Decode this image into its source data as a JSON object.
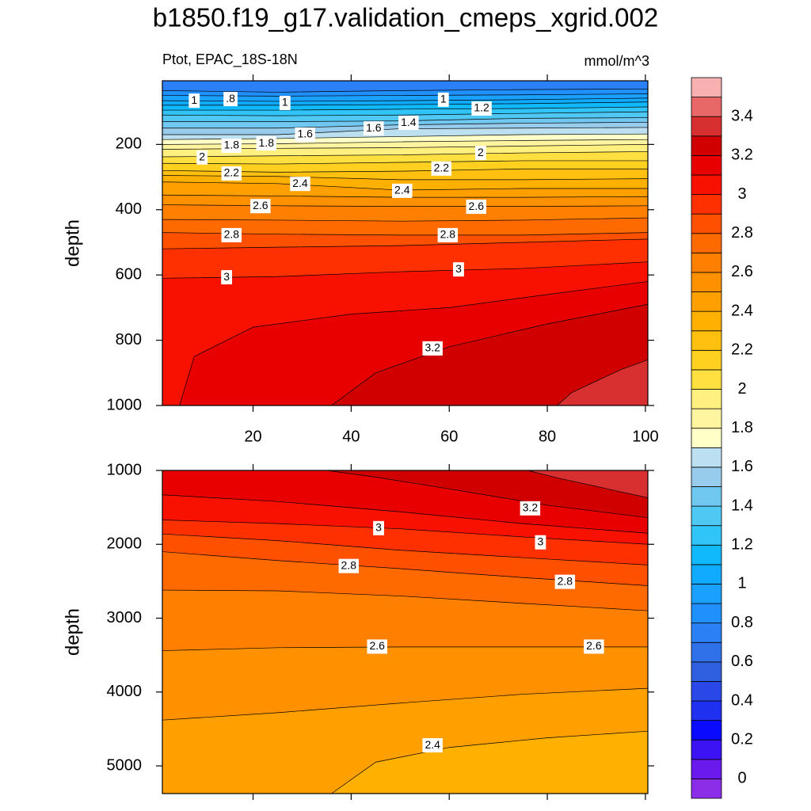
{
  "chart_data": {
    "type": "contour",
    "title": "b1850.f19_g17.validation_cmeps_xgrid.002",
    "subtitle_left": "Ptot, EPAC_18S-18N",
    "units": "mmol/m^3",
    "colorbar": {
      "levels": [
        0,
        0.1,
        0.2,
        0.3,
        0.4,
        0.5,
        0.6,
        0.7,
        0.8,
        0.9,
        1,
        1.1,
        1.2,
        1.3,
        1.4,
        1.5,
        1.6,
        1.7,
        1.8,
        1.9,
        2,
        2.1,
        2.2,
        2.3,
        2.4,
        2.5,
        2.6,
        2.7,
        2.8,
        2.9,
        3,
        3.1,
        3.2,
        3.3,
        3.4,
        3.5
      ],
      "colors": [
        "#8c2ee8",
        "#6a1aec",
        "#3c14f4",
        "#0a0aff",
        "#2030f0",
        "#2a48e8",
        "#3060e0",
        "#3070e8",
        "#2a80f4",
        "#2090fc",
        "#1aa0ff",
        "#10aaff",
        "#10b8fc",
        "#30c4f8",
        "#50c8f4",
        "#70c8f0",
        "#98ccec",
        "#bce0f0",
        "#ffffc8",
        "#fff4a0",
        "#fff080",
        "#ffe040",
        "#ffd020",
        "#ffc010",
        "#ffb000",
        "#ffa000",
        "#ff9000",
        "#ff8000",
        "#ff6a00",
        "#ff5000",
        "#ff3000",
        "#f81000",
        "#e80000",
        "#d00000",
        "#d83030",
        "#e86868",
        "#f8b0b0"
      ],
      "ticks": [
        0,
        0.2,
        0.4,
        0.6,
        0.8,
        1,
        1.2,
        1.4,
        1.6,
        1.8,
        2,
        2.2,
        2.4,
        2.6,
        2.8,
        3,
        3.2,
        3.4
      ]
    },
    "panels": [
      {
        "ylabel": "depth",
        "xlim": [
          1.5,
          100.5
        ],
        "ylim": [
          5,
          1000
        ],
        "y_reversed": true,
        "xticks": [
          20,
          40,
          60,
          80,
          100
        ],
        "show_xtick_labels": true,
        "yticks": [
          200,
          400,
          600,
          800,
          1000
        ],
        "contours": [
          {
            "level": 0.8,
            "x": [
              1.5,
              25,
              50,
              75,
              100.5
            ],
            "depth": [
              35,
              40,
              35,
              32,
              30
            ]
          },
          {
            "level": 0.9,
            "x": [
              1.5,
              25,
              50,
              75,
              100.5
            ],
            "depth": [
              50,
              52,
              50,
              48,
              45
            ]
          },
          {
            "level": 1,
            "x": [
              1.5,
              25,
              50,
              75,
              100.5
            ],
            "depth": [
              66,
              68,
              66,
              63,
              58
            ]
          },
          {
            "level": 1.1,
            "x": [
              1.5,
              25,
              50,
              75,
              100.5
            ],
            "depth": [
              80,
              80,
              78,
              75,
              70
            ]
          },
          {
            "level": 1.2,
            "x": [
              1.5,
              25,
              50,
              75,
              100.5
            ],
            "depth": [
              95,
              95,
              92,
              90,
              85
            ]
          },
          {
            "level": 1.3,
            "x": [
              1.5,
              25,
              50,
              75,
              100.5
            ],
            "depth": [
              110,
              112,
              110,
              105,
              100
            ]
          },
          {
            "level": 1.4,
            "x": [
              1.5,
              25,
              50,
              75,
              100.5
            ],
            "depth": [
              130,
              130,
              128,
              120,
              118
            ]
          },
          {
            "level": 1.5,
            "x": [
              1.5,
              25,
              50,
              75,
              100.5
            ],
            "depth": [
              150,
              150,
              140,
              135,
              132
            ]
          },
          {
            "level": 1.6,
            "x": [
              1.5,
              25,
              50,
              75,
              100.5
            ],
            "depth": [
              170,
              170,
              152,
              150,
              148
            ]
          },
          {
            "level": 1.7,
            "x": [
              1.5,
              25,
              50,
              75,
              100.5
            ],
            "depth": [
              185,
              182,
              176,
              170,
              168
            ]
          },
          {
            "level": 1.8,
            "x": [
              1.5,
              25,
              50,
              75,
              100.5
            ],
            "depth": [
              200,
              198,
              192,
              188,
              185
            ]
          },
          {
            "level": 1.9,
            "x": [
              1.5,
              25,
              50,
              75,
              100.5
            ],
            "depth": [
              215,
              212,
              210,
              205,
              200
            ]
          },
          {
            "level": 2,
            "x": [
              1.5,
              25,
              50,
              75,
              100.5
            ],
            "depth": [
              238,
              235,
              232,
              226,
              222
            ]
          },
          {
            "level": 2.1,
            "x": [
              1.5,
              25,
              50,
              75,
              100.5
            ],
            "depth": [
              258,
              260,
              255,
              250,
              250
            ]
          },
          {
            "level": 2.2,
            "x": [
              1.5,
              25,
              50,
              75,
              100.5
            ],
            "depth": [
              280,
              285,
              282,
              275,
              275
            ]
          },
          {
            "level": 2.3,
            "x": [
              1.5,
              25,
              50,
              75,
              100.5
            ],
            "depth": [
              295,
              298,
              308,
              308,
              305
            ]
          },
          {
            "level": 2.4,
            "x": [
              1.5,
              25,
              50,
              75,
              100.5
            ],
            "depth": [
              315,
              320,
              340,
              335,
              335
            ]
          },
          {
            "level": 2.5,
            "x": [
              1.5,
              25,
              50,
              75,
              100.5
            ],
            "depth": [
              355,
              358,
              362,
              362,
              360
            ]
          },
          {
            "level": 2.6,
            "x": [
              1.5,
              25,
              50,
              75,
              100.5
            ],
            "depth": [
              385,
              388,
              390,
              390,
              388
            ]
          },
          {
            "level": 2.7,
            "x": [
              1.5,
              25,
              50,
              75,
              100.5
            ],
            "depth": [
              430,
              432,
              435,
              432,
              425
            ]
          },
          {
            "level": 2.8,
            "x": [
              1.5,
              25,
              50,
              75,
              100.5
            ],
            "depth": [
              470,
              475,
              478,
              478,
              470
            ]
          },
          {
            "level": 2.9,
            "x": [
              1.5,
              25,
              50,
              75,
              100.5
            ],
            "depth": [
              520,
              515,
              510,
              500,
              490
            ]
          },
          {
            "level": 3,
            "x": [
              1.5,
              25,
              50,
              75,
              100.5
            ],
            "depth": [
              610,
              605,
              590,
              580,
              560
            ]
          },
          {
            "level": 3.1,
            "x": [
              5,
              8,
              20,
              40,
              60,
              80,
              100.5
            ],
            "depth": [
              1000,
              850,
              760,
              720,
              700,
              660,
              620
            ]
          },
          {
            "level": 3.2,
            "x": [
              36,
              45,
              60,
              80,
              100.5
            ],
            "depth": [
              1000,
              900,
              820,
              750,
              690
            ]
          },
          {
            "level": 3.3,
            "x": [
              82,
              85,
              95,
              100.5
            ],
            "depth": [
              1000,
              960,
              890,
              860
            ]
          }
        ],
        "contour_labels": [
          {
            "value": 1,
            "x": 8,
            "depth": 66
          },
          {
            "value": 0.8,
            "label": ".8",
            "x": 15.4,
            "depth": 61
          },
          {
            "value": 1,
            "x": 26.5,
            "depth": 73
          },
          {
            "value": 1,
            "x": 58.8,
            "depth": 63
          },
          {
            "value": 1.2,
            "x": 66.6,
            "depth": 90
          },
          {
            "value": 1.6,
            "x": 30.6,
            "depth": 170
          },
          {
            "value": 1.6,
            "x": 44.6,
            "depth": 151
          },
          {
            "value": 1.4,
            "x": 51.7,
            "depth": 134
          },
          {
            "value": 1.8,
            "x": 15.6,
            "depth": 204
          },
          {
            "value": 1.8,
            "x": 22.7,
            "depth": 197
          },
          {
            "value": 2,
            "x": 9.6,
            "depth": 240
          },
          {
            "value": 2,
            "x": 66.4,
            "depth": 226
          },
          {
            "value": 2.2,
            "x": 15.6,
            "depth": 289
          },
          {
            "value": 2.2,
            "x": 58.4,
            "depth": 274
          },
          {
            "value": 2.4,
            "x": 29.6,
            "depth": 321
          },
          {
            "value": 2.4,
            "x": 50.4,
            "depth": 342
          },
          {
            "value": 2.6,
            "x": 21.5,
            "depth": 389
          },
          {
            "value": 2.6,
            "x": 65.5,
            "depth": 391
          },
          {
            "value": 2.8,
            "x": 15.6,
            "depth": 478
          },
          {
            "value": 2.8,
            "x": 59.7,
            "depth": 478
          },
          {
            "value": 3,
            "x": 14.6,
            "depth": 607
          },
          {
            "value": 3,
            "x": 61.9,
            "depth": 583
          },
          {
            "value": 3.2,
            "x": 56.6,
            "depth": 825
          }
        ]
      },
      {
        "ylabel": "depth",
        "xlim": [
          1.5,
          100.5
        ],
        "ylim": [
          1000,
          5375
        ],
        "y_reversed": true,
        "xticks": [
          20,
          40,
          60,
          80,
          100
        ],
        "show_xtick_labels": false,
        "yticks": [
          1000,
          2000,
          3000,
          4000,
          5000
        ],
        "contours": [
          {
            "level": 3.3,
            "x": [
              76,
              82,
              100.5
            ],
            "depth": [
              1000,
              1100,
              1370
            ]
          },
          {
            "level": 3.2,
            "x": [
              35,
              45,
              60,
              80,
              100.5
            ],
            "depth": [
              1000,
              1090,
              1250,
              1470,
              1640
            ]
          },
          {
            "level": 3.1,
            "x": [
              1.5,
              25,
              50,
              75,
              100.5
            ],
            "depth": [
              1330,
              1420,
              1560,
              1720,
              1850
            ]
          },
          {
            "level": 3,
            "x": [
              1.5,
              25,
              50,
              75,
              100.5
            ],
            "depth": [
              1670,
              1720,
              1790,
              1900,
              2000
            ]
          },
          {
            "level": 2.9,
            "x": [
              1.5,
              25,
              50,
              75,
              100.5
            ],
            "depth": [
              1860,
              1950,
              2080,
              2180,
              2280
            ]
          },
          {
            "level": 2.8,
            "x": [
              1.5,
              25,
              50,
              75,
              100.5
            ],
            "depth": [
              2100,
              2220,
              2330,
              2450,
              2560
            ]
          },
          {
            "level": 2.7,
            "x": [
              1.5,
              25,
              50,
              75,
              100.5
            ],
            "depth": [
              2620,
              2630,
              2700,
              2800,
              2900
            ]
          },
          {
            "level": 2.6,
            "x": [
              1.5,
              25,
              50,
              75,
              100.5
            ],
            "depth": [
              3440,
              3400,
              3390,
              3390,
              3390
            ]
          },
          {
            "level": 2.5,
            "x": [
              1.5,
              25,
              50,
              75,
              100.5
            ],
            "depth": [
              4380,
              4280,
              4150,
              4030,
              3950
            ]
          },
          {
            "level": 2.4,
            "x": [
              36,
              45,
              60,
              80,
              100.5
            ],
            "depth": [
              5375,
              4950,
              4750,
              4620,
              4530
            ]
          }
        ],
        "contour_labels": [
          {
            "value": 3.2,
            "x": 76.5,
            "depth": 1513
          },
          {
            "value": 3,
            "x": 45.6,
            "depth": 1781
          },
          {
            "value": 3,
            "x": 78.6,
            "depth": 1973
          },
          {
            "value": 2.8,
            "x": 39.5,
            "depth": 2294
          },
          {
            "value": 2.8,
            "x": 83.6,
            "depth": 2508
          },
          {
            "value": 2.6,
            "x": 45.3,
            "depth": 3385
          },
          {
            "value": 2.6,
            "x": 89.5,
            "depth": 3385
          },
          {
            "value": 2.4,
            "x": 56.6,
            "depth": 4722
          }
        ]
      }
    ]
  }
}
